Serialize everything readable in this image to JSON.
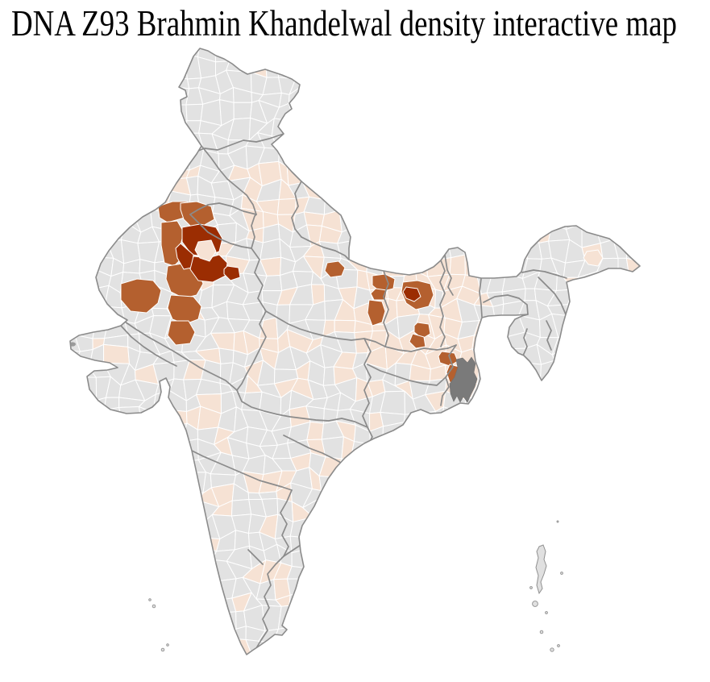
{
  "page": {
    "title": "DNA Z93 Brahmin Khandelwal density interactive map",
    "background_color": "#ffffff"
  },
  "map": {
    "kind": "choropleth",
    "subject": "district density shading",
    "density_levels": [
      "none",
      "low",
      "medium",
      "high"
    ],
    "colors": {
      "district_no_data": "#e2e2e2",
      "district_low": "#f6e2d4",
      "district_medium": "#b4602f",
      "district_high": "#9b2d02",
      "delta_region": "#7a7a7a",
      "district_border": "#ffffff",
      "state_border": "#8b8b8b",
      "coastline": "#8b8b8b",
      "island_fill": "#e0e0e0",
      "island_stroke": "#909090"
    }
  }
}
